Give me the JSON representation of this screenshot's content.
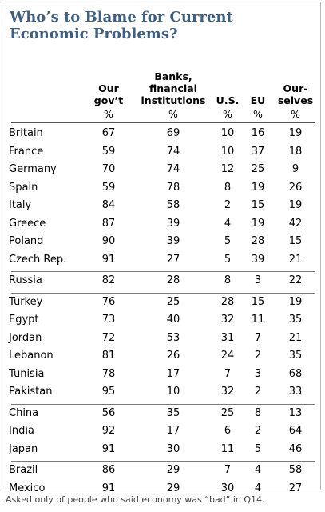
{
  "title": "Who’s to Blame for Current Economic Problems?",
  "columns": [
    {
      "lines": [
        "Our",
        "gov’t"
      ],
      "unit": "%"
    },
    {
      "lines": [
        "Banks,",
        "financial",
        "institutions"
      ],
      "unit": "%"
    },
    {
      "lines": [
        "U.S."
      ],
      "unit": "%"
    },
    {
      "lines": [
        "EU"
      ],
      "unit": "%"
    },
    {
      "lines": [
        "Our-",
        "selves"
      ],
      "unit": "%"
    }
  ],
  "footnote": "Asked only of people who said economy was “bad” in Q14.",
  "chart_data": {
    "type": "table",
    "title": "Who’s to Blame for Current Economic Problems?",
    "columns": [
      "Our gov’t",
      "Banks, financial institutions",
      "U.S.",
      "EU",
      "Ourselves"
    ],
    "unit": "%",
    "groups": [
      [
        {
          "country": "Britain",
          "values": [
            67,
            69,
            10,
            16,
            19
          ]
        },
        {
          "country": "France",
          "values": [
            59,
            74,
            10,
            37,
            18
          ]
        },
        {
          "country": "Germany",
          "values": [
            70,
            74,
            12,
            25,
            9
          ]
        },
        {
          "country": "Spain",
          "values": [
            59,
            78,
            8,
            19,
            26
          ]
        },
        {
          "country": "Italy",
          "values": [
            84,
            58,
            2,
            15,
            19
          ]
        },
        {
          "country": "Greece",
          "values": [
            87,
            39,
            4,
            19,
            42
          ]
        },
        {
          "country": "Poland",
          "values": [
            90,
            39,
            5,
            28,
            15
          ]
        },
        {
          "country": "Czech Rep.",
          "values": [
            91,
            27,
            5,
            39,
            21
          ]
        }
      ],
      [
        {
          "country": "Russia",
          "values": [
            82,
            28,
            8,
            3,
            22
          ]
        }
      ],
      [
        {
          "country": "Turkey",
          "values": [
            76,
            25,
            28,
            15,
            19
          ]
        },
        {
          "country": "Egypt",
          "values": [
            73,
            40,
            32,
            11,
            35
          ]
        },
        {
          "country": "Jordan",
          "values": [
            72,
            53,
            31,
            7,
            21
          ]
        },
        {
          "country": "Lebanon",
          "values": [
            81,
            26,
            24,
            2,
            35
          ]
        },
        {
          "country": "Tunisia",
          "values": [
            78,
            17,
            7,
            3,
            68
          ]
        },
        {
          "country": "Pakistan",
          "values": [
            95,
            10,
            32,
            2,
            33
          ]
        }
      ],
      [
        {
          "country": "China",
          "values": [
            56,
            35,
            25,
            8,
            13
          ]
        },
        {
          "country": "India",
          "values": [
            92,
            17,
            6,
            2,
            64
          ]
        },
        {
          "country": "Japan",
          "values": [
            91,
            30,
            11,
            5,
            46
          ]
        }
      ],
      [
        {
          "country": "Brazil",
          "values": [
            86,
            29,
            7,
            4,
            58
          ]
        },
        {
          "country": "Mexico",
          "values": [
            91,
            29,
            30,
            4,
            27
          ]
        }
      ]
    ]
  }
}
